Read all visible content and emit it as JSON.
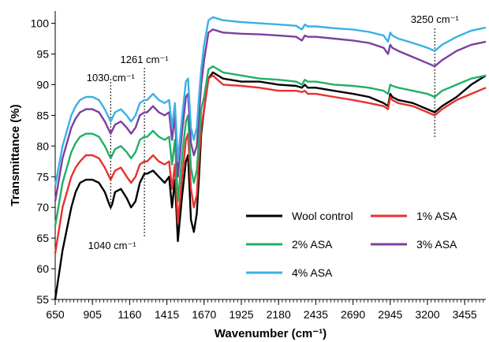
{
  "chart_data": {
    "type": "line",
    "xlabel": "Wavenumber (cm⁻¹)",
    "ylabel": "Transmittance (%)",
    "xlim": [
      650,
      3600
    ],
    "ylim": [
      55,
      102
    ],
    "x_ticks": [
      650,
      905,
      1160,
      1415,
      1670,
      1925,
      2180,
      2435,
      2690,
      2945,
      3200,
      3455
    ],
    "y_ticks": [
      55,
      60,
      65,
      70,
      75,
      80,
      85,
      90,
      95,
      100
    ],
    "grid": false,
    "legend_position": "bottom-right",
    "annotations": [
      {
        "text": "1030 cm⁻¹",
        "x": 1030
      },
      {
        "text": "1261 cm⁻¹",
        "x": 1261
      },
      {
        "text": "1040 cm⁻¹",
        "x": 1040
      },
      {
        "text": "3250 cm⁻¹",
        "x": 3250
      }
    ],
    "x": [
      650,
      700,
      760,
      790,
      820,
      860,
      905,
      950,
      990,
      1020,
      1030,
      1040,
      1060,
      1100,
      1140,
      1170,
      1200,
      1230,
      1261,
      1280,
      1320,
      1360,
      1400,
      1430,
      1450,
      1470,
      1490,
      1500,
      1520,
      1545,
      1560,
      1580,
      1600,
      1620,
      1635,
      1650,
      1670,
      1700,
      1730,
      1800,
      1925,
      2050,
      2180,
      2300,
      2340,
      2360,
      2380,
      2435,
      2560,
      2690,
      2800,
      2900,
      2930,
      2945,
      2960,
      3000,
      3100,
      3200,
      3250,
      3300,
      3400,
      3500,
      3600
    ],
    "series": [
      {
        "name": "Wool control",
        "color": "#000000",
        "values": [
          55.0,
          63.0,
          70.0,
          72.5,
          74.0,
          74.5,
          74.5,
          74.0,
          72.5,
          70.5,
          70.0,
          70.5,
          72.5,
          73.0,
          71.5,
          70.0,
          71.0,
          74.0,
          75.5,
          75.5,
          76.0,
          75.0,
          74.0,
          75.0,
          70.0,
          74.5,
          64.5,
          67.0,
          72.0,
          77.5,
          78.5,
          68.0,
          66.0,
          69.0,
          75.0,
          82.0,
          86.0,
          91.0,
          92.0,
          91.0,
          90.5,
          90.5,
          90.0,
          89.8,
          89.5,
          90.0,
          89.5,
          89.5,
          89.0,
          88.5,
          88.0,
          87.0,
          86.5,
          88.5,
          88.0,
          87.5,
          87.0,
          86.0,
          85.5,
          86.5,
          88.0,
          90.0,
          91.5
        ]
      },
      {
        "name": "1% ASA",
        "color": "#e8312f",
        "values": [
          62.5,
          70.0,
          75.0,
          76.5,
          77.5,
          78.5,
          78.5,
          78.0,
          76.5,
          75.0,
          74.5,
          75.0,
          76.0,
          76.5,
          75.0,
          74.0,
          75.0,
          77.0,
          77.5,
          77.5,
          78.5,
          77.5,
          77.0,
          77.5,
          73.0,
          77.0,
          67.5,
          70.0,
          75.0,
          81.0,
          82.0,
          73.0,
          70.0,
          72.0,
          78.0,
          83.0,
          86.0,
          91.0,
          91.5,
          90.0,
          89.8,
          89.5,
          89.0,
          89.0,
          88.8,
          89.0,
          88.5,
          88.5,
          88.0,
          87.5,
          87.0,
          86.5,
          86.0,
          88.0,
          87.5,
          87.0,
          86.5,
          85.5,
          85.0,
          86.0,
          87.5,
          88.5,
          89.5
        ]
      },
      {
        "name": "2% ASA",
        "color": "#21b066",
        "values": [
          67.0,
          74.0,
          79.0,
          80.5,
          81.5,
          82.0,
          82.0,
          81.5,
          80.0,
          78.5,
          78.0,
          78.5,
          79.5,
          80.0,
          79.0,
          78.0,
          79.0,
          81.0,
          81.5,
          81.5,
          82.5,
          81.5,
          81.0,
          81.5,
          77.0,
          81.0,
          71.0,
          73.5,
          78.5,
          84.0,
          85.0,
          76.5,
          74.0,
          76.0,
          81.0,
          86.0,
          88.0,
          92.5,
          93.0,
          92.0,
          91.5,
          91.0,
          90.8,
          90.5,
          90.0,
          90.8,
          90.5,
          90.5,
          90.0,
          89.8,
          89.5,
          89.0,
          88.5,
          90.0,
          89.8,
          89.5,
          89.0,
          88.5,
          88.0,
          89.0,
          90.0,
          91.0,
          91.5
        ]
      },
      {
        "name": "3% ASA",
        "color": "#7b3fa0",
        "values": [
          71.0,
          78.0,
          83.0,
          84.5,
          85.5,
          86.0,
          86.0,
          85.5,
          84.0,
          82.5,
          82.0,
          82.5,
          83.5,
          84.0,
          83.0,
          82.0,
          83.0,
          85.0,
          85.5,
          85.5,
          86.5,
          85.5,
          85.0,
          85.5,
          81.0,
          85.0,
          75.0,
          77.5,
          82.5,
          88.0,
          88.5,
          80.5,
          78.5,
          80.0,
          85.0,
          90.0,
          94.0,
          98.5,
          99.0,
          98.5,
          98.3,
          98.2,
          98.0,
          97.8,
          97.2,
          98.0,
          97.8,
          97.8,
          97.5,
          97.2,
          96.8,
          96.0,
          95.0,
          96.5,
          96.0,
          95.5,
          94.5,
          93.5,
          93.0,
          94.0,
          95.5,
          96.5,
          97.0
        ]
      },
      {
        "name": "4% ASA",
        "color": "#3bb0e6",
        "values": [
          73.5,
          80.0,
          85.0,
          86.5,
          87.5,
          88.0,
          88.0,
          87.5,
          86.0,
          84.5,
          84.0,
          84.5,
          85.5,
          86.0,
          85.0,
          84.0,
          85.0,
          87.0,
          87.5,
          87.5,
          88.5,
          87.5,
          87.0,
          87.5,
          83.0,
          87.0,
          77.5,
          80.0,
          85.0,
          90.5,
          91.0,
          83.0,
          81.0,
          83.0,
          88.0,
          92.5,
          96.5,
          100.5,
          101.0,
          100.5,
          100.2,
          100.0,
          99.8,
          99.6,
          99.0,
          99.8,
          99.5,
          99.5,
          99.2,
          99.0,
          98.6,
          98.0,
          97.0,
          98.5,
          98.0,
          97.5,
          96.8,
          96.0,
          95.5,
          96.5,
          97.8,
          98.8,
          99.3
        ]
      }
    ]
  }
}
